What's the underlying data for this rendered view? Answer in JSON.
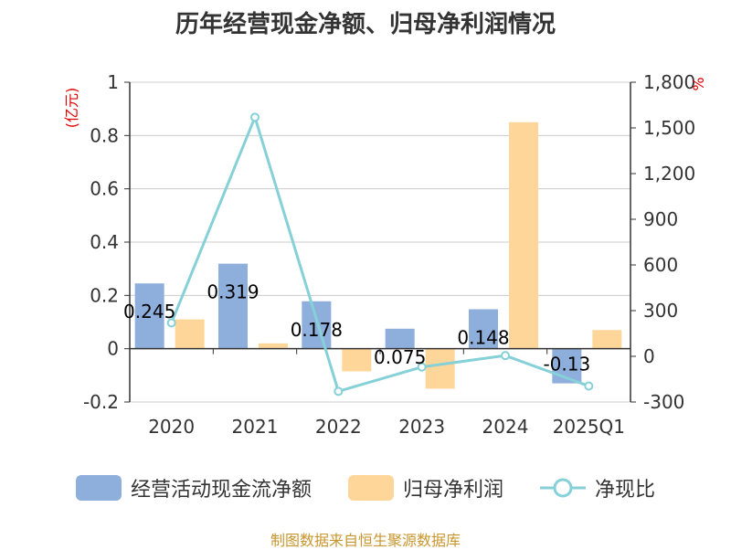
{
  "title": "历年经营现金净额、归母净利润情况",
  "left_unit": "(亿元)",
  "right_unit": "%",
  "source": "制图数据来自恒生聚源数据库",
  "legend": [
    {
      "label": "经营活动现金流净额",
      "color": "#8eaedc"
    },
    {
      "label": "归母净利润",
      "color": "#ffd699"
    },
    {
      "label": "净现比",
      "color": "#86d0d8"
    }
  ],
  "chart_data": {
    "type": "bar",
    "categories": [
      "2020",
      "2021",
      "2022",
      "2023",
      "2024",
      "2025Q1"
    ],
    "left_axis": {
      "min": -0.2,
      "max": 1,
      "ticks": [
        "-0.2",
        "0",
        "0.2",
        "0.4",
        "0.6",
        "0.8",
        "1"
      ]
    },
    "right_axis": {
      "min": -300,
      "max": 1800,
      "ticks": [
        "-300",
        "0",
        "300",
        "600",
        "900",
        "1,200",
        "1,500",
        "1,800"
      ]
    },
    "series": [
      {
        "name": "经营活动现金流净额",
        "type": "bar",
        "axis": "left",
        "color": "#8eaedc",
        "values": [
          0.245,
          0.319,
          0.178,
          0.075,
          0.148,
          -0.13
        ],
        "labels": [
          "0.245",
          "0.319",
          "0.178",
          "0.075",
          "0.148",
          "-0.13"
        ]
      },
      {
        "name": "归母净利润",
        "type": "bar",
        "axis": "left",
        "color": "#ffd699",
        "values": [
          0.11,
          0.02,
          -0.085,
          -0.15,
          0.85,
          0.07
        ]
      },
      {
        "name": "净现比",
        "type": "line",
        "axis": "right",
        "color": "#86d0d8",
        "values": [
          220,
          1570,
          -230,
          -70,
          5,
          -195
        ]
      }
    ],
    "grid": true
  }
}
